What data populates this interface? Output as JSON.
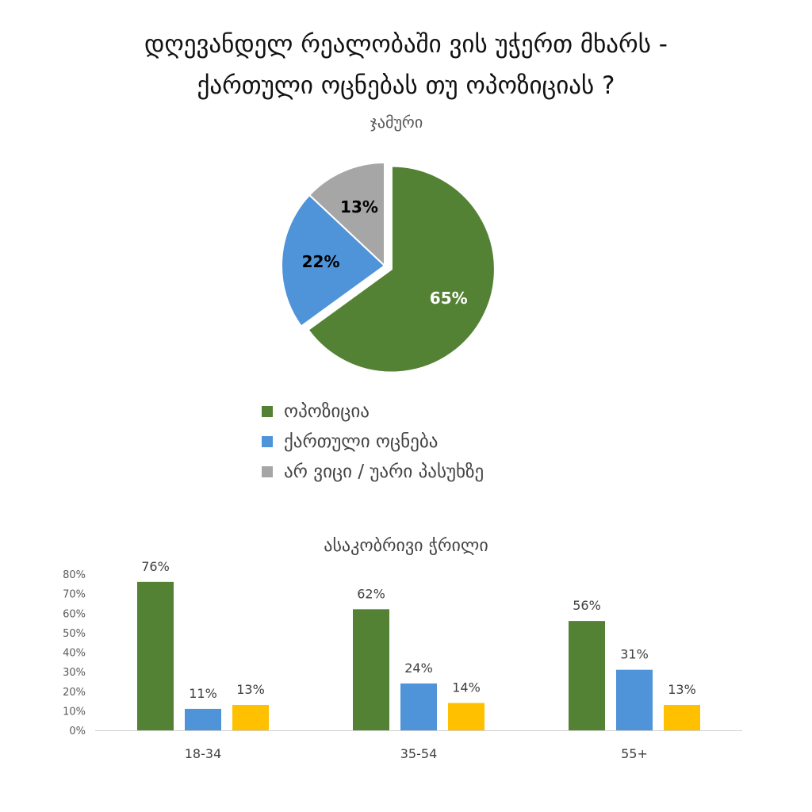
{
  "title": {
    "line1": "დღევანდელ რეალობაში ვის უჭერთ მხარს -",
    "line2": "ქართული ოცნებას თუ ოპოზიციას ?"
  },
  "colors": {
    "green": "#548235",
    "blue": "#4F94D8",
    "gray": "#A6A6A6",
    "yellow": "#FFC000"
  },
  "chart_data": [
    {
      "type": "pie",
      "title": "ჯამური",
      "slices": [
        {
          "label": "ოპოზიცია",
          "value": 65,
          "display": "65%",
          "color": "#548235"
        },
        {
          "label": "ქართული ოცნება",
          "value": 22,
          "display": "22%",
          "color": "#4F94D8"
        },
        {
          "label": "არ ვიცი / უარი პასუხზე",
          "value": 13,
          "display": "13%",
          "color": "#A6A6A6"
        }
      ],
      "legend_position": "bottom"
    },
    {
      "type": "bar",
      "title": "ასაკობრივი ჭრილი",
      "categories": [
        "18-34",
        "35-54",
        "55+"
      ],
      "series": [
        {
          "values": [
            76,
            62,
            56
          ],
          "labels": [
            "76%",
            "62%",
            "56%"
          ],
          "color": "#548235"
        },
        {
          "values": [
            11,
            24,
            31
          ],
          "labels": [
            "11%",
            "24%",
            "31%"
          ],
          "color": "#4F94D8"
        },
        {
          "values": [
            13,
            14,
            13
          ],
          "labels": [
            "13%",
            "14%",
            "13%"
          ],
          "color": "#FFC000"
        }
      ],
      "yticks": [
        "0%",
        "10%",
        "20%",
        "30%",
        "40%",
        "50%",
        "60%",
        "70%",
        "80%"
      ],
      "ylim": [
        0,
        80
      ],
      "grid": false
    }
  ]
}
